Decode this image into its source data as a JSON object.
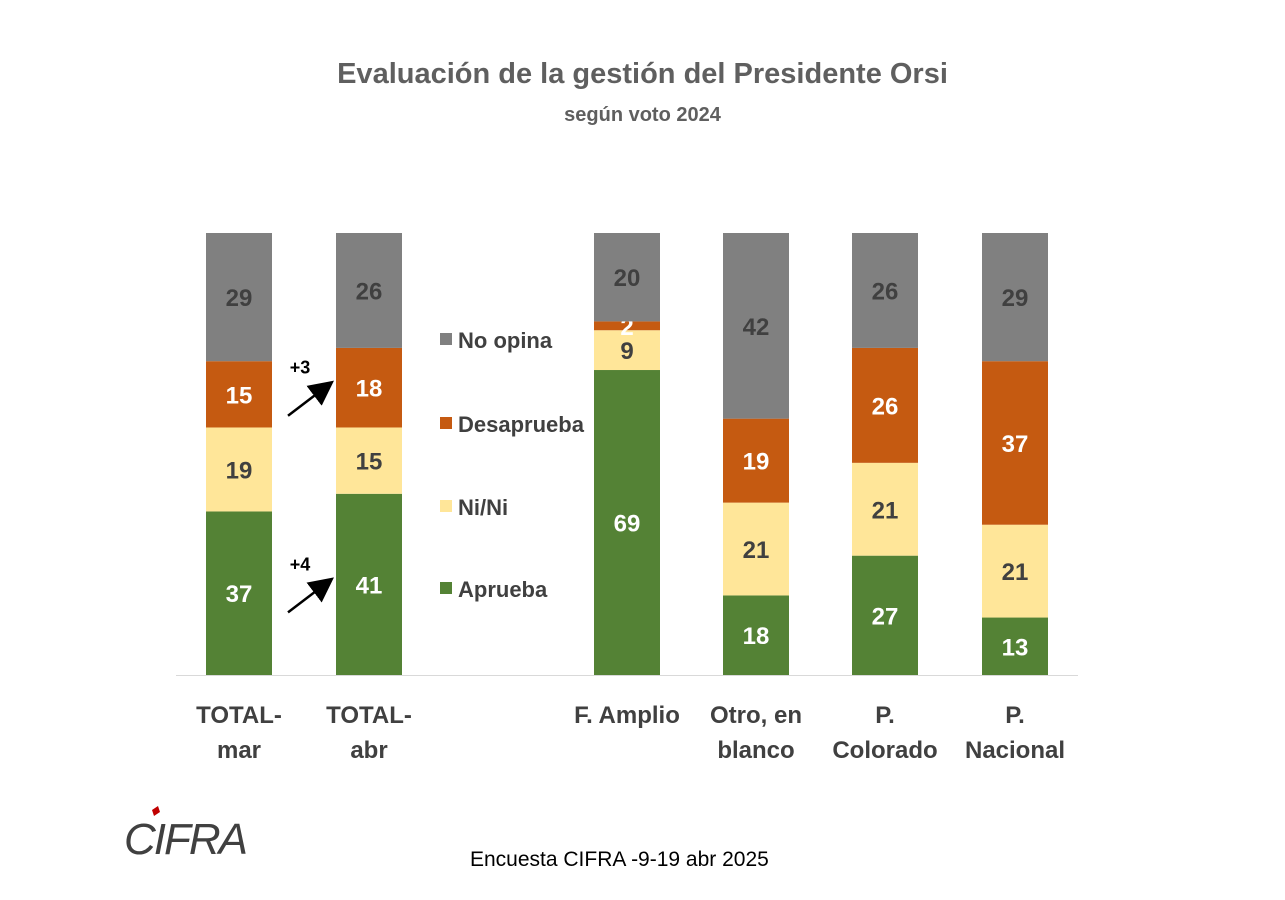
{
  "title": "Evaluación de la gestión del Presidente Orsi",
  "subtitle": "según voto 2024",
  "source": "Encuesta CIFRA  -9-19 abr 2025",
  "logo_text": "CIFRA",
  "chart_data": {
    "type": "bar",
    "stacked": true,
    "categories": [
      [
        "TOTAL-",
        "mar"
      ],
      [
        "TOTAL-",
        "abr"
      ],
      [
        "F. Amplio"
      ],
      [
        "Otro, en",
        "blanco"
      ],
      [
        "P.",
        "Colorado"
      ],
      [
        "P.",
        "Nacional"
      ]
    ],
    "series": [
      {
        "name": "Aprueba",
        "color": "#548235",
        "label_color": "#ffffff",
        "values": [
          37,
          41,
          69,
          18,
          27,
          13
        ]
      },
      {
        "name": "Ni/Ni",
        "color": "#ffe699",
        "label_color": "#404040",
        "values": [
          19,
          15,
          9,
          21,
          21,
          21
        ]
      },
      {
        "name": "Desaprueba",
        "color": "#c55a11",
        "label_color": "#ffffff",
        "values": [
          15,
          18,
          2,
          19,
          26,
          37
        ]
      },
      {
        "name": "No opina",
        "color": "#808080",
        "label_color": "#404040",
        "values": [
          29,
          26,
          20,
          42,
          26,
          29
        ]
      }
    ],
    "legend_order": [
      "No opina",
      "Desaprueba",
      "Ni/Ni",
      "Aprueba"
    ],
    "legend_position": "middle, between TOTAL-abr and F. Amplio",
    "annotations": [
      {
        "text": "+3",
        "from": "TOTAL-mar",
        "to": "TOTAL-abr",
        "series": "Desaprueba"
      },
      {
        "text": "+4",
        "from": "TOTAL-mar",
        "to": "TOTAL-abr",
        "series": "Aprueba"
      }
    ],
    "ylim": [
      0,
      100
    ],
    "grid": false,
    "unit": "%"
  }
}
